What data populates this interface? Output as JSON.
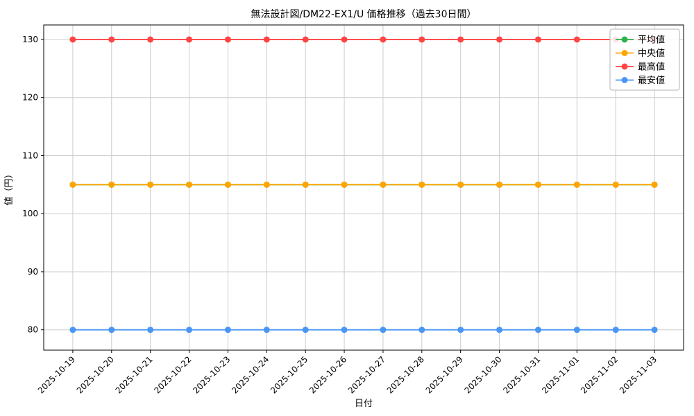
{
  "chart_data": {
    "type": "line",
    "title": "無法設計図/DM22-EX1/U 価格推移（過去30日間）",
    "xlabel": "日付",
    "ylabel": "値（円）",
    "x": [
      "2025-10-19",
      "2025-10-20",
      "2025-10-21",
      "2025-10-22",
      "2025-10-23",
      "2025-10-24",
      "2025-10-25",
      "2025-10-26",
      "2025-10-27",
      "2025-10-28",
      "2025-10-29",
      "2025-10-30",
      "2025-10-31",
      "2025-11-01",
      "2025-11-02",
      "2025-11-03"
    ],
    "yticks": [
      80,
      90,
      100,
      110,
      120,
      130
    ],
    "ylim": [
      76.5,
      132.5
    ],
    "grid": true,
    "legend_position": "upper right",
    "series": [
      {
        "name": "平均値",
        "color": "#2cb34a",
        "values": [
          105,
          105,
          105,
          105,
          105,
          105,
          105,
          105,
          105,
          105,
          105,
          105,
          105,
          105,
          105,
          105
        ]
      },
      {
        "name": "中央値",
        "color": "#ffa502",
        "values": [
          105,
          105,
          105,
          105,
          105,
          105,
          105,
          105,
          105,
          105,
          105,
          105,
          105,
          105,
          105,
          105
        ]
      },
      {
        "name": "最高値",
        "color": "#ff4444",
        "values": [
          130,
          130,
          130,
          130,
          130,
          130,
          130,
          130,
          130,
          130,
          130,
          130,
          130,
          130,
          130,
          130
        ]
      },
      {
        "name": "最安値",
        "color": "#4a96f5",
        "values": [
          80,
          80,
          80,
          80,
          80,
          80,
          80,
          80,
          80,
          80,
          80,
          80,
          80,
          80,
          80,
          80
        ]
      }
    ],
    "colors": {
      "grid": "#cccccc",
      "axis": "#000000",
      "background": "#ffffff",
      "legend_border": "#b3b3b3"
    }
  }
}
